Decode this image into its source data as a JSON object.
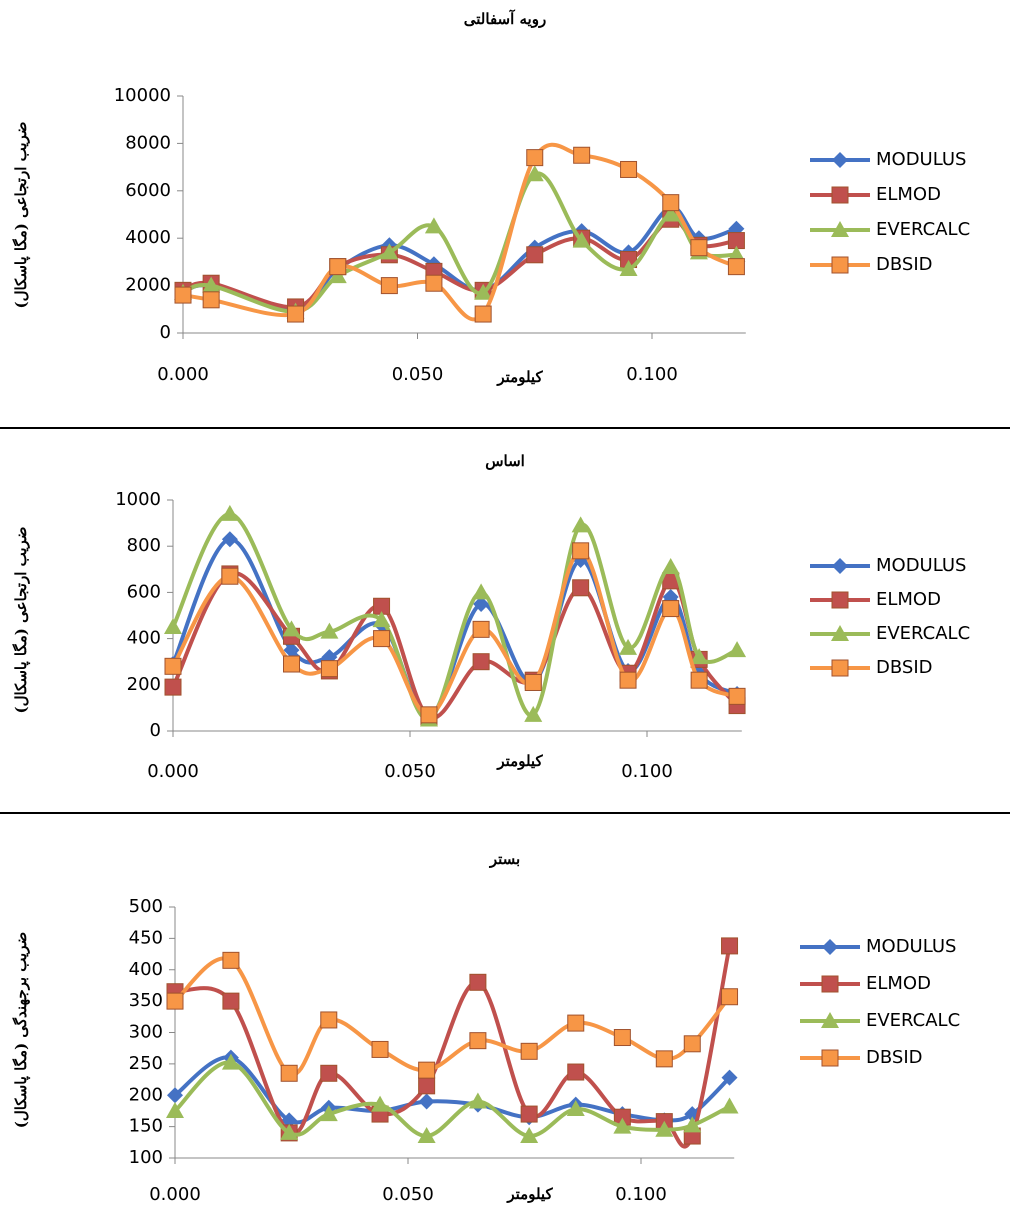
{
  "chart_data": [
    {
      "type": "line",
      "title": "رویه آسفالتی",
      "y_label": "ضریب ارتجاعی (مگا پاسکال)",
      "x_label": "کیلومتر",
      "x": [
        0,
        0.006,
        0.024,
        0.033,
        0.044,
        0.0535,
        0.064,
        0.075,
        0.085,
        0.095,
        0.104,
        0.11,
        0.118
      ],
      "xlim": [
        0,
        0.12
      ],
      "xticks": [
        {
          "value": 0,
          "label": "0.000"
        },
        {
          "value": 0.05,
          "label": "0.050"
        },
        {
          "value": 0.1,
          "label": "0.100"
        }
      ],
      "ylim": [
        0,
        10000
      ],
      "yticks": [
        0,
        2000,
        4000,
        6000,
        8000,
        10000
      ],
      "series": [
        {
          "name": "MODULUS",
          "color": "#4472c4",
          "marker": "diamond",
          "values": [
            1700,
            2000,
            1000,
            2700,
            3700,
            2900,
            1800,
            3600,
            4300,
            3400,
            5300,
            4000,
            4400
          ]
        },
        {
          "name": "ELMOD",
          "color": "#c0504d",
          "marker": "square",
          "values": [
            1800,
            2100,
            1100,
            2800,
            3300,
            2600,
            1800,
            3300,
            4000,
            3100,
            4800,
            3700,
            3900
          ]
        },
        {
          "name": "EVERCALC",
          "color": "#9bbb59",
          "marker": "triangle",
          "values": [
            1700,
            2000,
            900,
            2400,
            3400,
            4500,
            1700,
            6700,
            3900,
            2700,
            5000,
            3400,
            3300
          ]
        },
        {
          "name": "DBSID",
          "color": "#f79646",
          "marker": "square",
          "values": [
            1600,
            1400,
            800,
            2800,
            2000,
            2100,
            800,
            7400,
            7500,
            6900,
            5500,
            3600,
            2800
          ]
        }
      ]
    },
    {
      "type": "line",
      "title": "اساس",
      "y_label": "ضریب ارتجاعی (مگا پاسکال)",
      "x_label": "کیلومتر",
      "x": [
        0,
        0.012,
        0.025,
        0.033,
        0.044,
        0.054,
        0.065,
        0.076,
        0.086,
        0.096,
        0.105,
        0.111,
        0.119
      ],
      "xlim": [
        0,
        0.12
      ],
      "xticks": [
        {
          "value": 0,
          "label": "0.000"
        },
        {
          "value": 0.05,
          "label": "0.050"
        },
        {
          "value": 0.1,
          "label": "0.100"
        }
      ],
      "ylim": [
        0,
        1000
      ],
      "yticks": [
        0,
        200,
        400,
        600,
        800,
        1000
      ],
      "series": [
        {
          "name": "MODULUS",
          "color": "#4472c4",
          "marker": "diamond",
          "values": [
            290,
            830,
            350,
            320,
            460,
            60,
            550,
            210,
            740,
            260,
            580,
            250,
            160
          ]
        },
        {
          "name": "ELMOD",
          "color": "#c0504d",
          "marker": "square",
          "values": [
            190,
            680,
            410,
            260,
            540,
            60,
            300,
            220,
            620,
            250,
            650,
            310,
            110
          ]
        },
        {
          "name": "EVERCALC",
          "color": "#9bbb59",
          "marker": "triangle",
          "values": [
            450,
            940,
            440,
            430,
            480,
            50,
            600,
            70,
            890,
            360,
            710,
            320,
            350
          ]
        },
        {
          "name": "DBSID",
          "color": "#f79646",
          "marker": "square",
          "values": [
            280,
            670,
            290,
            270,
            400,
            70,
            440,
            210,
            780,
            220,
            530,
            220,
            150
          ]
        }
      ]
    },
    {
      "type": "line",
      "title": "بستر",
      "y_label": "ضریب برجهندگی (مگا پاسکال)",
      "x_label": "کیلومتر",
      "x": [
        0,
        0.012,
        0.0245,
        0.033,
        0.044,
        0.054,
        0.065,
        0.076,
        0.086,
        0.096,
        0.105,
        0.111,
        0.119
      ],
      "xlim": [
        0,
        0.12
      ],
      "xticks": [
        {
          "value": 0,
          "label": "0.000"
        },
        {
          "value": 0.05,
          "label": "0.050"
        },
        {
          "value": 0.1,
          "label": "0.100"
        }
      ],
      "ylim": [
        100,
        500
      ],
      "yticks": [
        100,
        150,
        200,
        250,
        300,
        350,
        400,
        450,
        500
      ],
      "series": [
        {
          "name": "MODULUS",
          "color": "#4472c4",
          "marker": "diamond",
          "values": [
            200,
            260,
            160,
            180,
            175,
            190,
            185,
            165,
            185,
            170,
            160,
            170,
            228
          ]
        },
        {
          "name": "ELMOD",
          "color": "#c0504d",
          "marker": "square",
          "values": [
            365,
            350,
            140,
            235,
            170,
            215,
            380,
            170,
            237,
            165,
            158,
            135,
            438
          ]
        },
        {
          "name": "EVERCALC",
          "color": "#9bbb59",
          "marker": "triangle",
          "values": [
            175,
            252,
            140,
            170,
            185,
            135,
            190,
            135,
            178,
            150,
            145,
            152,
            182
          ]
        },
        {
          "name": "DBSID",
          "color": "#f79646",
          "marker": "square",
          "values": [
            350,
            415,
            235,
            320,
            273,
            240,
            287,
            270,
            315,
            292,
            258,
            282,
            357
          ]
        }
      ]
    }
  ]
}
